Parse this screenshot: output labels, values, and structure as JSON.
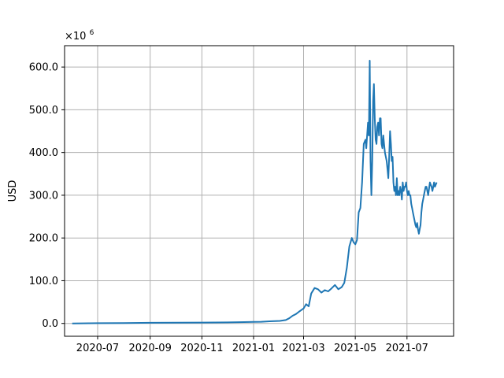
{
  "chart_data": {
    "type": "line",
    "title": "",
    "xlabel": "",
    "ylabel": "USD",
    "y_multiplier_label": "×10",
    "y_multiplier_exponent": "6",
    "grid": true,
    "color": "#1f77b4",
    "xlim": [
      "2020-05-23",
      "2021-08-25"
    ],
    "ylim": [
      -30,
      650
    ],
    "x_ticks": [
      {
        "date": "2020-07-01",
        "label": "2020-07"
      },
      {
        "date": "2020-09-01",
        "label": "2020-09"
      },
      {
        "date": "2020-11-01",
        "label": "2020-11"
      },
      {
        "date": "2021-01-01",
        "label": "2021-01"
      },
      {
        "date": "2021-03-01",
        "label": "2021-03"
      },
      {
        "date": "2021-05-01",
        "label": "2021-05"
      },
      {
        "date": "2021-07-01",
        "label": "2021-07"
      }
    ],
    "y_ticks": [
      {
        "value": 0,
        "label": "0.0"
      },
      {
        "value": 100,
        "label": "100.0"
      },
      {
        "value": 200,
        "label": "200.0"
      },
      {
        "value": 300,
        "label": "300.0"
      },
      {
        "value": 400,
        "label": "400.0"
      },
      {
        "value": 500,
        "label": "500.0"
      },
      {
        "value": 600,
        "label": "600.0"
      }
    ],
    "series": [
      {
        "x": [
          "2020-06-01",
          "2020-07-01",
          "2020-08-01",
          "2020-09-01",
          "2020-10-01",
          "2020-11-01",
          "2020-12-01",
          "2020-12-15",
          "2021-01-01",
          "2021-01-10",
          "2021-01-20",
          "2021-02-01",
          "2021-02-08",
          "2021-02-12",
          "2021-02-16",
          "2021-02-20",
          "2021-02-24",
          "2021-03-01",
          "2021-03-04",
          "2021-03-07",
          "2021-03-10",
          "2021-03-14",
          "2021-03-18",
          "2021-03-22",
          "2021-03-26",
          "2021-03-30",
          "2021-04-03",
          "2021-04-07",
          "2021-04-11",
          "2021-04-15",
          "2021-04-18",
          "2021-04-21",
          "2021-04-24",
          "2021-04-27",
          "2021-04-29",
          "2021-05-01",
          "2021-05-03",
          "2021-05-05",
          "2021-05-07",
          "2021-05-09",
          "2021-05-11",
          "2021-05-13",
          "2021-05-14",
          "2021-05-16",
          "2021-05-17",
          "2021-05-18",
          "2021-05-19",
          "2021-05-20",
          "2021-05-21",
          "2021-05-22",
          "2021-05-23",
          "2021-05-24",
          "2021-05-25",
          "2021-05-26",
          "2021-05-27",
          "2021-05-28",
          "2021-05-29",
          "2021-05-30",
          "2021-05-31",
          "2021-06-01",
          "2021-06-02",
          "2021-06-03",
          "2021-06-04",
          "2021-06-05",
          "2021-06-06",
          "2021-06-07",
          "2021-06-08",
          "2021-06-09",
          "2021-06-10",
          "2021-06-11",
          "2021-06-12",
          "2021-06-13",
          "2021-06-14",
          "2021-06-15",
          "2021-06-16",
          "2021-06-17",
          "2021-06-18",
          "2021-06-19",
          "2021-06-20",
          "2021-06-21",
          "2021-06-22",
          "2021-06-23",
          "2021-06-24",
          "2021-06-25",
          "2021-06-26",
          "2021-06-27",
          "2021-06-28",
          "2021-06-29",
          "2021-06-30",
          "2021-07-01",
          "2021-07-02",
          "2021-07-03",
          "2021-07-04",
          "2021-07-05",
          "2021-07-06",
          "2021-07-07",
          "2021-07-08",
          "2021-07-09",
          "2021-07-10",
          "2021-07-11",
          "2021-07-12",
          "2021-07-13",
          "2021-07-14",
          "2021-07-15",
          "2021-07-16",
          "2021-07-17",
          "2021-07-18",
          "2021-07-19",
          "2021-07-20",
          "2021-07-21",
          "2021-07-22",
          "2021-07-23",
          "2021-07-24",
          "2021-07-25",
          "2021-07-26",
          "2021-07-27",
          "2021-07-28",
          "2021-07-29",
          "2021-07-30",
          "2021-07-31",
          "2021-08-01",
          "2021-08-02",
          "2021-08-03",
          "2021-08-04",
          "2021-08-05"
        ],
        "y": [
          0,
          0.5,
          1,
          1.5,
          1.8,
          2,
          2.5,
          3,
          3.5,
          4,
          5,
          6,
          8,
          12,
          18,
          22,
          28,
          35,
          45,
          40,
          70,
          83,
          80,
          72,
          78,
          75,
          82,
          90,
          80,
          85,
          95,
          130,
          180,
          200,
          190,
          185,
          195,
          260,
          270,
          330,
          420,
          430,
          410,
          470,
          440,
          615,
          380,
          300,
          380,
          520,
          560,
          480,
          430,
          420,
          460,
          470,
          440,
          480,
          480,
          420,
          410,
          440,
          420,
          400,
          390,
          380,
          360,
          340,
          390,
          450,
          420,
          380,
          390,
          330,
          310,
          320,
          300,
          340,
          300,
          310,
          300,
          320,
          310,
          290,
          330,
          310,
          320,
          320,
          330,
          310,
          300,
          310,
          300,
          300,
          280,
          270,
          260,
          250,
          240,
          230,
          225,
          235,
          220,
          210,
          220,
          230,
          260,
          280,
          290,
          300,
          310,
          320,
          320,
          310,
          300,
          315,
          330,
          325,
          320,
          310,
          320,
          330,
          320,
          325,
          330
        ]
      }
    ]
  }
}
